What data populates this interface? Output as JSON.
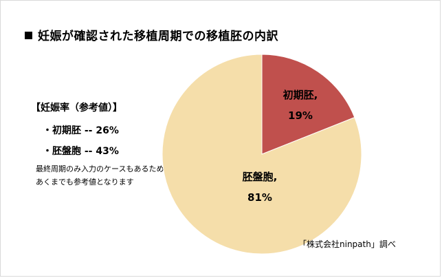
{
  "title": "妊娠が確認された移植周期での移植胚の内訳",
  "rates": {
    "heading": "【妊娠率（参考値）】",
    "items": [
      "・初期胚 -- 26%",
      "・胚盤胞 -- 43%"
    ],
    "note_lines": [
      "最終周期のみ入力のケースもあるため",
      "あくまでも参考値となります"
    ]
  },
  "source": "「株式会社ninpath」調べ",
  "chart_data": {
    "type": "pie",
    "title": "妊娠が確認された移植周期での移植胚の内訳",
    "series": [
      {
        "name": "初期胚,",
        "value": 19,
        "label": "19%",
        "color": "#c0504d"
      },
      {
        "name": "胚盤胞,",
        "value": 81,
        "label": "81%",
        "color": "#f5deaa"
      }
    ],
    "start_angle": "12 o'clock, clockwise"
  }
}
